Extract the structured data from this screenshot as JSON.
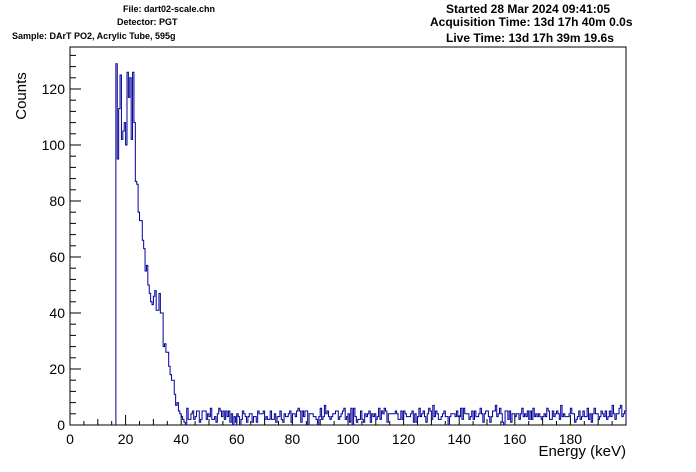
{
  "header": {
    "file": "File: dart02-scale.chn",
    "detector": "Detector: PGT",
    "sample": "Sample: DArT PO2, Acrylic Tube, 595g",
    "started": "Started 28 Mar 2024 09:41:05",
    "acquisition": "Acquisition Time: 13d 17h 40m 0.0s",
    "live": "Live Time: 13d 17h 39m 19.6s"
  },
  "chart_data": {
    "type": "line",
    "title": "",
    "xlabel": "Energy (keV)",
    "ylabel": "Counts",
    "xlim": [
      0,
      200
    ],
    "ylim": [
      0,
      135
    ],
    "x_ticks": [
      0,
      20,
      40,
      60,
      80,
      100,
      120,
      140,
      160,
      180
    ],
    "y_ticks": [
      0,
      20,
      40,
      60,
      80,
      100,
      120
    ],
    "bin_width": 0.5,
    "x_start": 16.5,
    "color": "#000099",
    "values": [
      129,
      95,
      113,
      125,
      102,
      105,
      108,
      100,
      126,
      117,
      124,
      102,
      126,
      108,
      87,
      86,
      76,
      73,
      73,
      66,
      63,
      55,
      57,
      50,
      47,
      44,
      43,
      46,
      48,
      41,
      41,
      47,
      40,
      40,
      28,
      29,
      26,
      26,
      21,
      18,
      16,
      16,
      11,
      7,
      8,
      5,
      4,
      3,
      2,
      1,
      0,
      6,
      2,
      2,
      4,
      5,
      2,
      3,
      5,
      5,
      1,
      2,
      5,
      5,
      5,
      2,
      4,
      3,
      6,
      2,
      2,
      3,
      1,
      4,
      6,
      5,
      3,
      5,
      2,
      5,
      3,
      5,
      1,
      4,
      0,
      3,
      1,
      4,
      3,
      0,
      2,
      5,
      4,
      3,
      1,
      3,
      4,
      4,
      1,
      3,
      3,
      1,
      5,
      4,
      4,
      4,
      5,
      2,
      3,
      2,
      2,
      5,
      2,
      2,
      4,
      1,
      3,
      3,
      5,
      2,
      1,
      4,
      3,
      3,
      4,
      5,
      1,
      4,
      4,
      3,
      5,
      6,
      5,
      1,
      5,
      3,
      5,
      5,
      0,
      4,
      4,
      4,
      3,
      3,
      2,
      0,
      3,
      6,
      2,
      3,
      7,
      4,
      5,
      3,
      2,
      3,
      4,
      4,
      5,
      5,
      2,
      3,
      4,
      5,
      6,
      2,
      3,
      4,
      1,
      6,
      0,
      6,
      3,
      1,
      2,
      2,
      5,
      2,
      1,
      4,
      3,
      4,
      5,
      1,
      4,
      3,
      4,
      2,
      3,
      6,
      2,
      5,
      4,
      6,
      5,
      1,
      4,
      4,
      4,
      4,
      4,
      5,
      4,
      2,
      2,
      5,
      2,
      5,
      4,
      3,
      3,
      3,
      4,
      5,
      1,
      4,
      1,
      3,
      6,
      3,
      4,
      5,
      3,
      1,
      4,
      6,
      5,
      2,
      7,
      3,
      5,
      4,
      2,
      2,
      3,
      4,
      5,
      3,
      3,
      0,
      3,
      4,
      4,
      4,
      3,
      5,
      3,
      3,
      6,
      2,
      6,
      4,
      4,
      4,
      2,
      3,
      5,
      2,
      5,
      3,
      3,
      4,
      6,
      4,
      1,
      4,
      5,
      5,
      3,
      1,
      3,
      5,
      5,
      7,
      3,
      4,
      6,
      4,
      1,
      0,
      5,
      5,
      2,
      5,
      1,
      4,
      4,
      3,
      4,
      4,
      2,
      4,
      6,
      3,
      4,
      3,
      5,
      2,
      5,
      2,
      6,
      3,
      4,
      3,
      4,
      3,
      2,
      3,
      4,
      3,
      6,
      5,
      2,
      2,
      5,
      3,
      4,
      5,
      4,
      2,
      7,
      3,
      4,
      3,
      3,
      3,
      4,
      6,
      4,
      4,
      1,
      2,
      3,
      5,
      2,
      3,
      5,
      3,
      3,
      6,
      2,
      4,
      1,
      4,
      6,
      4,
      4,
      2,
      3,
      5,
      4,
      3,
      5,
      2,
      3,
      5,
      3,
      7,
      4,
      2,
      4,
      4,
      6,
      7,
      3,
      4,
      5,
      2,
      5,
      4,
      4,
      4,
      2,
      3
    ]
  }
}
